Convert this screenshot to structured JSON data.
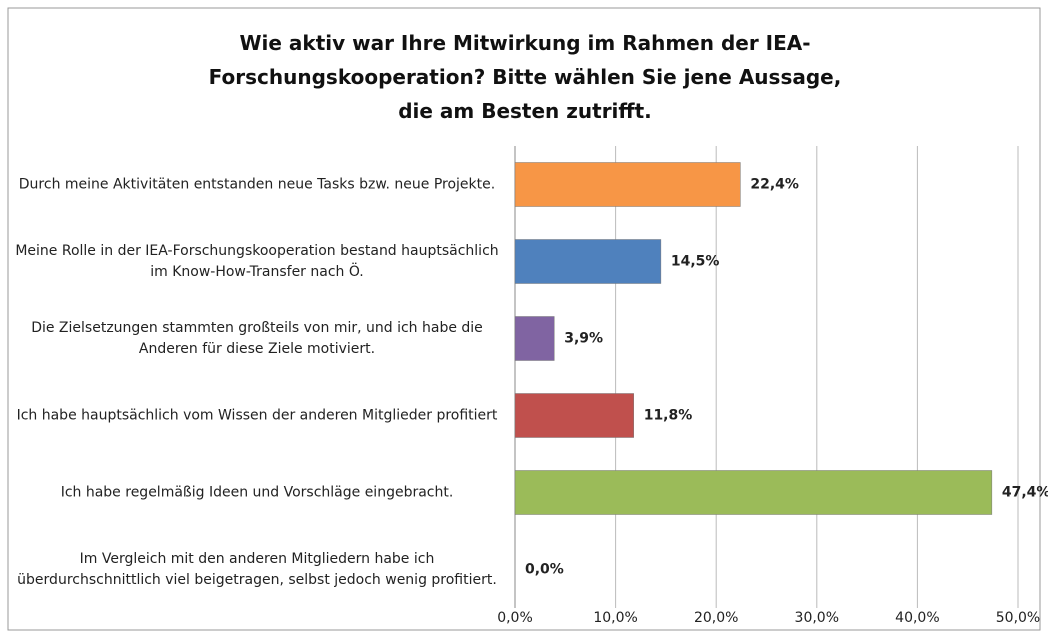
{
  "chart_data": {
    "type": "bar",
    "orientation": "horizontal",
    "title": "Wie aktiv war Ihre Mitwirkung im Rahmen der IEA-Forschungskooperation?  Bitte wählen Sie jene Aussage, die am Besten zutrifft.",
    "categories": [
      "Durch meine Aktivitäten entstanden neue Tasks bzw. neue Projekte.",
      "Meine Rolle in der IEA-Forschungskooperation bestand hauptsächlich im Know-How-Transfer nach Ö.",
      "Die Zielsetzungen stammten großteils von mir, und ich habe die Anderen für diese Ziele motiviert.",
      "Ich habe hauptsächlich vom Wissen der anderen Mitglieder profitiert",
      "Ich habe regelmäßig Ideen und Vorschläge eingebracht.",
      "Im Vergleich mit den anderen Mitgliedern habe ich überdurchschnittlich viel beigetragen, selbst jedoch wenig profitiert."
    ],
    "values": [
      22.4,
      14.5,
      3.9,
      11.8,
      47.4,
      0.0
    ],
    "value_labels": [
      "22,4%",
      "14,5%",
      "3,9%",
      "11,8%",
      "47,4%",
      "0,0%"
    ],
    "colors": [
      "#f79646",
      "#4f81bd",
      "#8064a2",
      "#c0504d",
      "#9bbb59",
      "#9bbb59"
    ],
    "xlim": [
      0,
      50
    ],
    "xticks": [
      {
        "value": 0,
        "label": "0,0%"
      },
      {
        "value": 10,
        "label": "10,0%"
      },
      {
        "value": 20,
        "label": "20,0%"
      },
      {
        "value": 30,
        "label": "30,0%"
      },
      {
        "value": 40,
        "label": "40,0%"
      },
      {
        "value": 50,
        "label": "50,0%"
      }
    ],
    "grid": true
  }
}
